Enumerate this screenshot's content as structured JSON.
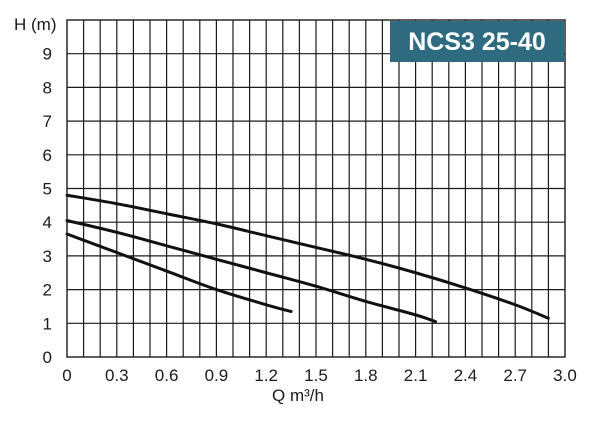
{
  "chart_data": {
    "type": "line",
    "title": "NCS3 25-40",
    "xlabel": "Q m³/h",
    "ylabel": "H (m)",
    "xlim": [
      0,
      3.0
    ],
    "ylim": [
      0,
      10
    ],
    "x_ticks": [
      "0",
      "0.3",
      "0.6",
      "0.9",
      "1.2",
      "1.5",
      "1.8",
      "2.1",
      "2.4",
      "2.7",
      "3.0"
    ],
    "y_ticks": [
      "0",
      "1",
      "2",
      "3",
      "4",
      "5",
      "6",
      "7",
      "8",
      "9"
    ],
    "grid": true,
    "colors": {
      "title_bg": "#2e6b80",
      "curve": "#111111",
      "grid": "#1a1a1a"
    },
    "series": [
      {
        "x": [
          0,
          0.3,
          0.6,
          0.9,
          1.2,
          1.35
        ],
        "y": [
          3.65,
          3.1,
          2.55,
          2.0,
          1.55,
          1.35
        ]
      },
      {
        "x": [
          0,
          0.3,
          0.6,
          0.9,
          1.2,
          1.5,
          1.8,
          2.1,
          2.22
        ],
        "y": [
          4.05,
          3.7,
          3.3,
          2.9,
          2.5,
          2.1,
          1.65,
          1.25,
          1.05
        ]
      },
      {
        "x": [
          0,
          0.3,
          0.6,
          0.9,
          1.2,
          1.5,
          1.8,
          2.1,
          2.4,
          2.7,
          2.9
        ],
        "y": [
          4.8,
          4.55,
          4.25,
          3.95,
          3.6,
          3.25,
          2.9,
          2.5,
          2.05,
          1.55,
          1.15
        ]
      }
    ]
  }
}
